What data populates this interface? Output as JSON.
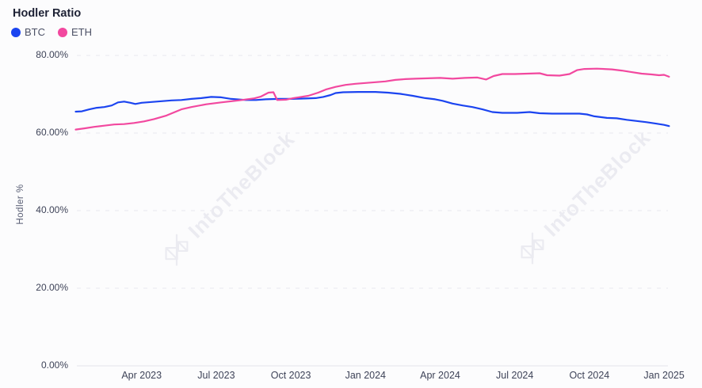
{
  "page": {
    "title": "Hodler Ratio"
  },
  "colors": {
    "background": "#fcfcfd",
    "grid": "#e7e7ee",
    "axis_line": "#e3e3ea",
    "btc_line": "#1b44f0",
    "eth_line": "#f2489f",
    "watermark": "#ebebf1"
  },
  "watermark": {
    "text": "IntoTheBlock"
  },
  "axes": {
    "y_label": "Hodler %",
    "y_ticks": [
      {
        "value": 80,
        "label": "80.00%"
      },
      {
        "value": 60,
        "label": "60.00%"
      },
      {
        "value": 40,
        "label": "40.00%"
      },
      {
        "value": 20,
        "label": "20.00%"
      },
      {
        "value": 0,
        "label": "0.00%"
      }
    ],
    "x_ticks": [
      {
        "m": 3,
        "label": "Apr 2023"
      },
      {
        "m": 6,
        "label": "Jul 2023"
      },
      {
        "m": 9,
        "label": "Oct 2023"
      },
      {
        "m": 12,
        "label": "Jan 2024"
      },
      {
        "m": 15,
        "label": "Apr 2024"
      },
      {
        "m": 18,
        "label": "Jul 2024"
      },
      {
        "m": 21,
        "label": "Oct 2024"
      },
      {
        "m": 24,
        "label": "Jan 2025"
      }
    ]
  },
  "chart_data": {
    "type": "line",
    "title": "Hodler Ratio",
    "xlabel": "",
    "ylabel": "Hodler %",
    "x_unit": "months since 2023-01-01 (0 = Jan 2023, 24 = Jan 2025)",
    "ylim": [
      0,
      80
    ],
    "grid": "dashed horizontal",
    "legend_position": "top-left",
    "series": [
      {
        "name": "BTC",
        "color": "#1b44f0",
        "points": [
          [
            0.35,
            65.5
          ],
          [
            0.6,
            65.6
          ],
          [
            0.9,
            66.1
          ],
          [
            1.2,
            66.5
          ],
          [
            1.5,
            66.7
          ],
          [
            1.8,
            67.1
          ],
          [
            2.05,
            67.9
          ],
          [
            2.3,
            68.1
          ],
          [
            2.55,
            67.8
          ],
          [
            2.75,
            67.5
          ],
          [
            3.0,
            67.8
          ],
          [
            3.4,
            68.0
          ],
          [
            3.8,
            68.2
          ],
          [
            4.2,
            68.4
          ],
          [
            4.6,
            68.5
          ],
          [
            5.0,
            68.8
          ],
          [
            5.4,
            69.0
          ],
          [
            5.8,
            69.3
          ],
          [
            6.2,
            69.2
          ],
          [
            6.6,
            68.8
          ],
          [
            7.2,
            68.5
          ],
          [
            7.6,
            68.5
          ],
          [
            8.0,
            68.7
          ],
          [
            8.5,
            68.8
          ],
          [
            9.0,
            68.8
          ],
          [
            9.6,
            68.9
          ],
          [
            10.0,
            69.0
          ],
          [
            10.3,
            69.3
          ],
          [
            10.6,
            69.8
          ],
          [
            10.8,
            70.3
          ],
          [
            11.1,
            70.5
          ],
          [
            11.7,
            70.6
          ],
          [
            12.4,
            70.6
          ],
          [
            12.9,
            70.4
          ],
          [
            13.4,
            70.1
          ],
          [
            13.9,
            69.6
          ],
          [
            14.4,
            69.0
          ],
          [
            14.8,
            68.7
          ],
          [
            15.1,
            68.3
          ],
          [
            15.5,
            67.6
          ],
          [
            15.9,
            67.1
          ],
          [
            16.3,
            66.7
          ],
          [
            16.7,
            66.1
          ],
          [
            17.1,
            65.4
          ],
          [
            17.5,
            65.2
          ],
          [
            18.1,
            65.2
          ],
          [
            18.6,
            65.4
          ],
          [
            19.0,
            65.1
          ],
          [
            19.5,
            65.0
          ],
          [
            20.1,
            65.0
          ],
          [
            20.6,
            65.0
          ],
          [
            20.9,
            64.8
          ],
          [
            21.2,
            64.3
          ],
          [
            21.7,
            63.9
          ],
          [
            22.1,
            63.8
          ],
          [
            22.5,
            63.4
          ],
          [
            22.9,
            63.1
          ],
          [
            23.3,
            62.8
          ],
          [
            23.7,
            62.4
          ],
          [
            24.0,
            62.1
          ],
          [
            24.2,
            61.8
          ]
        ]
      },
      {
        "name": "ETH",
        "color": "#f2489f",
        "points": [
          [
            0.35,
            60.9
          ],
          [
            0.7,
            61.2
          ],
          [
            1.1,
            61.6
          ],
          [
            1.5,
            61.9
          ],
          [
            1.9,
            62.2
          ],
          [
            2.3,
            62.3
          ],
          [
            2.7,
            62.6
          ],
          [
            3.1,
            63.0
          ],
          [
            3.5,
            63.6
          ],
          [
            4.0,
            64.5
          ],
          [
            4.6,
            66.1
          ],
          [
            5.0,
            66.7
          ],
          [
            5.6,
            67.4
          ],
          [
            6.2,
            67.9
          ],
          [
            6.9,
            68.4
          ],
          [
            7.5,
            68.9
          ],
          [
            7.8,
            69.4
          ],
          [
            8.1,
            70.4
          ],
          [
            8.3,
            70.5
          ],
          [
            8.45,
            68.5
          ],
          [
            8.8,
            68.6
          ],
          [
            9.1,
            69.0
          ],
          [
            9.7,
            69.6
          ],
          [
            10.1,
            70.4
          ],
          [
            10.4,
            71.2
          ],
          [
            10.8,
            71.9
          ],
          [
            11.2,
            72.4
          ],
          [
            11.6,
            72.7
          ],
          [
            12.0,
            72.9
          ],
          [
            12.4,
            73.1
          ],
          [
            12.8,
            73.3
          ],
          [
            13.2,
            73.7
          ],
          [
            13.6,
            73.9
          ],
          [
            14.0,
            74.0
          ],
          [
            14.5,
            74.1
          ],
          [
            15.0,
            74.2
          ],
          [
            15.5,
            74.0
          ],
          [
            16.0,
            74.2
          ],
          [
            16.5,
            74.3
          ],
          [
            16.85,
            73.8
          ],
          [
            17.15,
            74.7
          ],
          [
            17.5,
            75.2
          ],
          [
            18.0,
            75.2
          ],
          [
            18.5,
            75.3
          ],
          [
            19.0,
            75.4
          ],
          [
            19.3,
            74.9
          ],
          [
            19.8,
            74.8
          ],
          [
            20.2,
            75.2
          ],
          [
            20.5,
            76.2
          ],
          [
            20.8,
            76.5
          ],
          [
            21.3,
            76.6
          ],
          [
            21.9,
            76.4
          ],
          [
            22.3,
            76.1
          ],
          [
            22.7,
            75.7
          ],
          [
            23.1,
            75.3
          ],
          [
            23.5,
            75.1
          ],
          [
            23.8,
            74.9
          ],
          [
            24.0,
            75.0
          ],
          [
            24.2,
            74.5
          ]
        ]
      }
    ]
  }
}
